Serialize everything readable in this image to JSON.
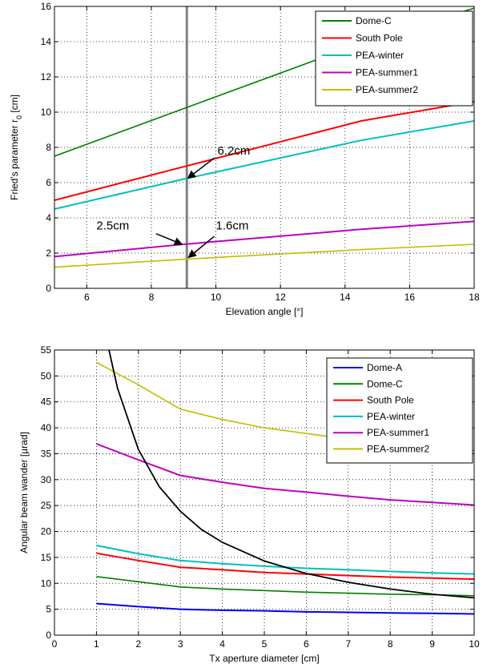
{
  "chart_data": [
    {
      "type": "line",
      "xlabel": "Elevation angle [°]",
      "ylabel": "Fried's parameter r",
      "ylabel_subscript": "0",
      "ylabel_unit": " [cm]",
      "xlim": [
        5,
        18
      ],
      "ylim": [
        0,
        16
      ],
      "xticks": [
        6,
        8,
        10,
        12,
        14,
        16,
        18
      ],
      "yticks": [
        0,
        2,
        4,
        6,
        8,
        10,
        12,
        14,
        16
      ],
      "grid": true,
      "legend_position": "top-right",
      "series": [
        {
          "name": "Dome-C",
          "color": "#008000",
          "x": [
            5,
            9,
            14.5,
            18
          ],
          "y": [
            7.5,
            10.2,
            13.9,
            15.9
          ]
        },
        {
          "name": "South Pole",
          "color": "#ff0000",
          "x": [
            5,
            9,
            14.5,
            18
          ],
          "y": [
            5.0,
            6.9,
            9.5,
            10.6
          ]
        },
        {
          "name": "PEA-winter",
          "color": "#00bfbf",
          "x": [
            5,
            9,
            14.5,
            18
          ],
          "y": [
            4.5,
            6.2,
            8.4,
            9.5
          ]
        },
        {
          "name": "PEA-summer1",
          "color": "#bf00bf",
          "x": [
            5,
            9,
            14.5,
            18
          ],
          "y": [
            1.8,
            2.5,
            3.35,
            3.8
          ]
        },
        {
          "name": "PEA-summer2",
          "color": "#bfbf00",
          "x": [
            5,
            9,
            14.5,
            18
          ],
          "y": [
            1.2,
            1.65,
            2.2,
            2.5
          ]
        }
      ],
      "vline": {
        "x": 9.1,
        "color": "#808080"
      },
      "annotations": [
        {
          "text": "6.2cm",
          "text_x": 10.05,
          "text_y": 7.6,
          "tail_x": 9.95,
          "tail_y": 7.4,
          "head_x": 9.13,
          "head_y": 6.25
        },
        {
          "text": "2.5cm",
          "text_x": 6.3,
          "text_y": 3.35,
          "tail_x": 8.15,
          "tail_y": 3.1,
          "head_x": 8.95,
          "head_y": 2.5
        },
        {
          "text": "1.6cm",
          "text_x": 10.0,
          "text_y": 3.35,
          "tail_x": 9.95,
          "tail_y": 2.95,
          "head_x": 9.15,
          "head_y": 1.75
        }
      ]
    },
    {
      "type": "line",
      "xlabel": "Tx aperture diameter [cm]",
      "ylabel": "Angular beam wander [µrad]",
      "xlim": [
        0,
        10
      ],
      "ylim": [
        0,
        55
      ],
      "xticks": [
        0,
        1,
        2,
        3,
        4,
        5,
        6,
        7,
        8,
        9,
        10
      ],
      "yticks": [
        0,
        5,
        10,
        15,
        20,
        25,
        30,
        35,
        40,
        45,
        50,
        55
      ],
      "grid": true,
      "legend_position": "top-right",
      "series": [
        {
          "name": "Dome-A",
          "color": "#0000ff",
          "x": [
            1,
            2,
            3,
            4,
            5,
            6,
            7,
            8,
            9,
            10
          ],
          "y": [
            6.1,
            5.5,
            5.0,
            4.8,
            4.7,
            4.5,
            4.4,
            4.3,
            4.2,
            4.1
          ]
        },
        {
          "name": "Dome-C",
          "color": "#008000",
          "x": [
            1,
            2,
            3,
            4,
            5,
            6,
            7,
            8,
            9,
            10
          ],
          "y": [
            11.3,
            10.3,
            9.3,
            8.9,
            8.6,
            8.3,
            8.1,
            7.9,
            7.8,
            7.6
          ]
        },
        {
          "name": "South Pole",
          "color": "#ff0000",
          "x": [
            1,
            2,
            3,
            4,
            5,
            6,
            7,
            8,
            9,
            10
          ],
          "y": [
            15.8,
            14.4,
            13.1,
            12.6,
            12.1,
            11.8,
            11.5,
            11.2,
            11.0,
            10.8
          ]
        },
        {
          "name": "PEA-winter",
          "color": "#00bfbf",
          "x": [
            1,
            2,
            3,
            4,
            5,
            6,
            7,
            8,
            9,
            10
          ],
          "y": [
            17.3,
            15.7,
            14.4,
            13.8,
            13.3,
            12.9,
            12.6,
            12.3,
            12.0,
            11.8
          ]
        },
        {
          "name": "PEA-summer1",
          "color": "#bf00bf",
          "x": [
            1,
            2,
            3,
            4,
            5,
            6,
            7,
            8,
            9,
            10
          ],
          "y": [
            36.9,
            33.8,
            30.8,
            29.5,
            28.3,
            27.6,
            26.8,
            26.1,
            25.6,
            25.1
          ]
        },
        {
          "name": "PEA-summer2",
          "color": "#bfbf00",
          "x": [
            1,
            2,
            3,
            4,
            5,
            6,
            7,
            8,
            9,
            10
          ],
          "y": [
            52.6,
            48.3,
            43.6,
            41.6,
            40.0,
            38.9,
            37.8,
            36.8,
            36.2,
            35.6
          ]
        }
      ],
      "extra_curve": {
        "color": "#000000",
        "x": [
          1.3,
          1.5,
          2,
          2.5,
          3,
          3.5,
          4,
          5,
          6,
          7,
          8,
          9,
          10
        ],
        "y": [
          55,
          47.7,
          35.8,
          28.6,
          23.9,
          20.4,
          17.9,
          14.3,
          11.9,
          10.2,
          8.9,
          7.9,
          7.2
        ]
      }
    }
  ]
}
